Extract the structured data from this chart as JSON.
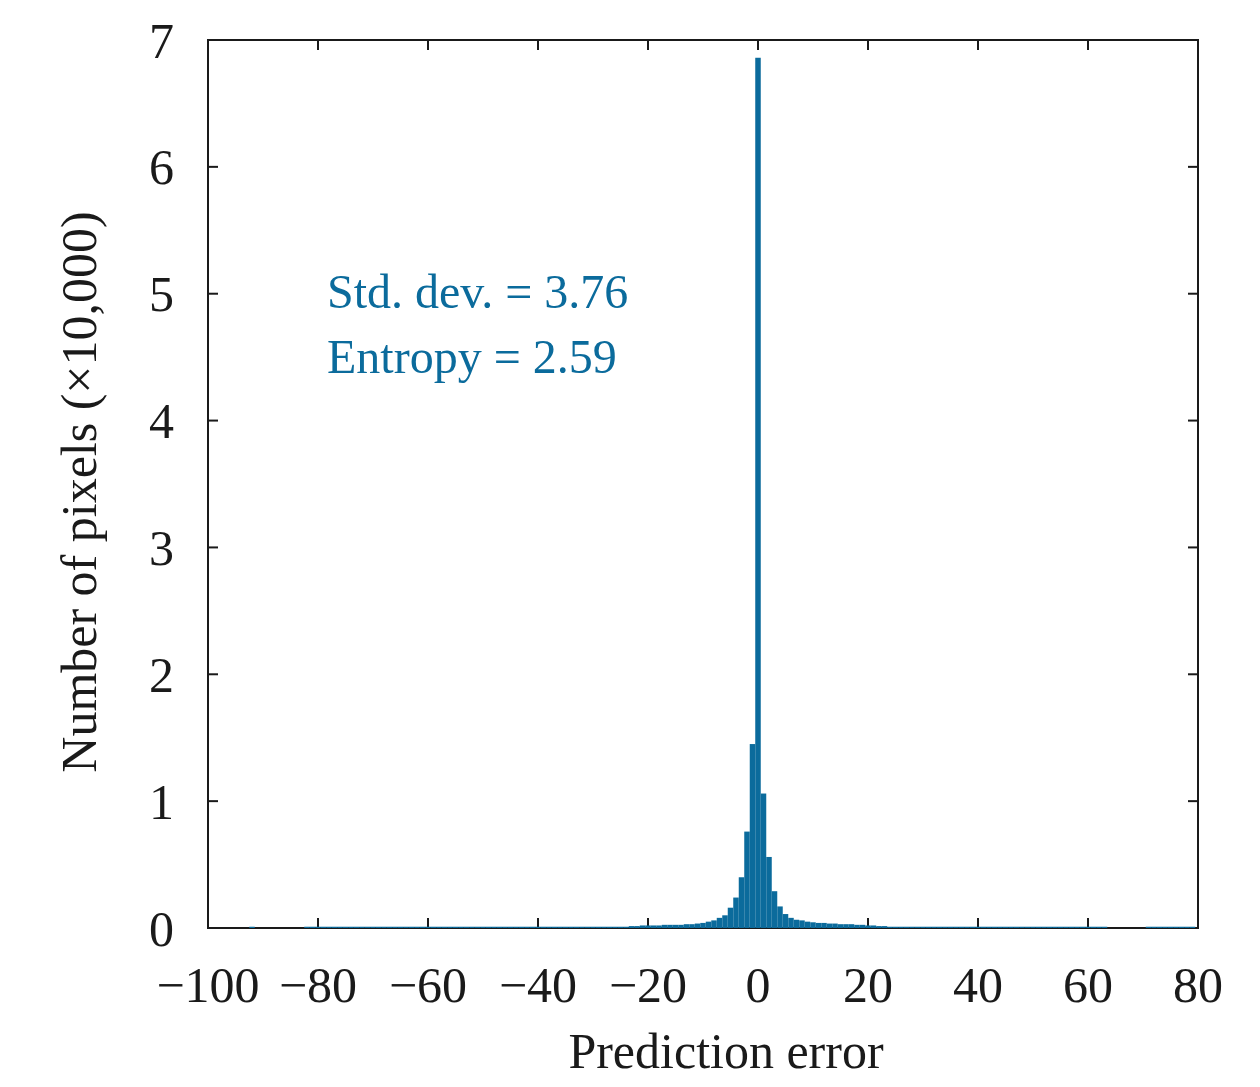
{
  "chart_data": {
    "type": "histogram",
    "xlabel": "Prediction error",
    "ylabel": "Number of pixels (×10,000)",
    "annotations": [
      "Std. dev. = 3.76",
      "Entropy = 2.59"
    ],
    "color": "#0b6b9c",
    "xlim": [
      -100,
      80
    ],
    "ylim": [
      0,
      7
    ],
    "xticks": [
      {
        "value": -100,
        "label": "−100"
      },
      {
        "value": -80,
        "label": "−80"
      },
      {
        "value": -60,
        "label": "−60"
      },
      {
        "value": -40,
        "label": "−40"
      },
      {
        "value": -20,
        "label": "−20"
      },
      0,
      20,
      40,
      60,
      80
    ],
    "yticks": [
      0,
      1,
      2,
      3,
      4,
      5,
      6,
      7
    ],
    "bins": [
      -92.5,
      -91.5,
      -82.5,
      -81.5,
      -80.5,
      -79.5,
      -78.5,
      -77.5,
      -76.5,
      -75.5,
      -74.5,
      -73.5,
      -72.5,
      -71.5,
      -70.5,
      -69.5,
      -68.5,
      -67.5,
      -66.5,
      -65.5,
      -64.5,
      -63.5,
      -62.5,
      -61.5,
      -60.5,
      -59.5,
      -58.5,
      -57.5,
      -56.5,
      -55.5,
      -54.5,
      -53.5,
      -52.5,
      -51.5,
      -50.5,
      -49.5,
      -48.5,
      -47.5,
      -46.5,
      -45.5,
      -44.5,
      -43.5,
      -42.5,
      -41.5,
      -40.5,
      -39.5,
      -38.5,
      -37.5,
      -36.5,
      -35.5,
      -34.5,
      -33.5,
      -32.5,
      -31.5,
      -30.5,
      -29.5,
      -28.5,
      -27.5,
      -26.5,
      -25.5,
      -24.5,
      -23.5,
      -22.5,
      -21.5,
      -20.5,
      -19.5,
      -18.5,
      -17.5,
      -16.5,
      -15.5,
      -14.5,
      -13.5,
      -12.5,
      -11.5,
      -10.5,
      -9.5,
      -8.5,
      -7.5,
      -6.5,
      -5.5,
      -4.5,
      -3.5,
      -2.5,
      -1.5,
      -0.5,
      0.5,
      1.5,
      2.5,
      3.5,
      4.5,
      5.5,
      6.5,
      7.5,
      8.5,
      9.5,
      10.5,
      11.5,
      12.5,
      13.5,
      14.5,
      15.5,
      16.5,
      17.5,
      18.5,
      19.5,
      20.5,
      21.5,
      22.5,
      23.5,
      24.5,
      25.5,
      26.5,
      27.5,
      28.5,
      29.5,
      30.5,
      31.5,
      32.5,
      33.5,
      34.5,
      35.5,
      36.5,
      37.5,
      38.5,
      39.5,
      40.5,
      41.5,
      42.5,
      43.5,
      44.5,
      45.5,
      46.5,
      47.5,
      48.5,
      49.5,
      50.5,
      51.5,
      52.5,
      53.5,
      54.5,
      55.5,
      56.5,
      57.5,
      58.5,
      59.5,
      60.5,
      61.5,
      62.5,
      63.5,
      70.5,
      71.5,
      72.5,
      73.5,
      74.5,
      75.5,
      76.5,
      77.5,
      78.5,
      79.5
    ],
    "values": [
      0.01,
      0,
      0.01,
      0.01,
      0.01,
      0.01,
      0.01,
      0.01,
      0.01,
      0.01,
      0.01,
      0.01,
      0.01,
      0.01,
      0.01,
      0.01,
      0.01,
      0.01,
      0.01,
      0.01,
      0.01,
      0.01,
      0.01,
      0.01,
      0.01,
      0.01,
      0.01,
      0.01,
      0.01,
      0.01,
      0.01,
      0.01,
      0.01,
      0.01,
      0.01,
      0.01,
      0.01,
      0.01,
      0.01,
      0.01,
      0.01,
      0.01,
      0.01,
      0.01,
      0.01,
      0.01,
      0.01,
      0.01,
      0.01,
      0.01,
      0.01,
      0.01,
      0.01,
      0.01,
      0.01,
      0.01,
      0.01,
      0.01,
      0.01,
      0.01,
      0.01,
      0.015,
      0.015,
      0.02,
      0.02,
      0.02,
      0.02,
      0.025,
      0.025,
      0.025,
      0.025,
      0.03,
      0.03,
      0.035,
      0.04,
      0.05,
      0.06,
      0.08,
      0.1,
      0.16,
      0.24,
      0.4,
      0.76,
      1.45,
      6.86,
      1.06,
      0.56,
      0.29,
      0.17,
      0.11,
      0.08,
      0.065,
      0.06,
      0.05,
      0.045,
      0.04,
      0.04,
      0.035,
      0.035,
      0.03,
      0.03,
      0.03,
      0.025,
      0.025,
      0.02,
      0.02,
      0.015,
      0.015,
      0.01,
      0.01,
      0.01,
      0.01,
      0.01,
      0.01,
      0.01,
      0.01,
      0.01,
      0.01,
      0.01,
      0.01,
      0.01,
      0.01,
      0.01,
      0.01,
      0.01,
      0.01,
      0.01,
      0.01,
      0.01,
      0.01,
      0.01,
      0.01,
      0.01,
      0.01,
      0.01,
      0.01,
      0.01,
      0.01,
      0.01,
      0.01,
      0.01,
      0.01,
      0.01,
      0.01,
      0.01,
      0.01,
      0.01,
      0.01,
      0,
      0.01,
      0.01,
      0.01,
      0.01,
      0.01,
      0.01,
      0.01,
      0.01,
      0.01
    ]
  }
}
